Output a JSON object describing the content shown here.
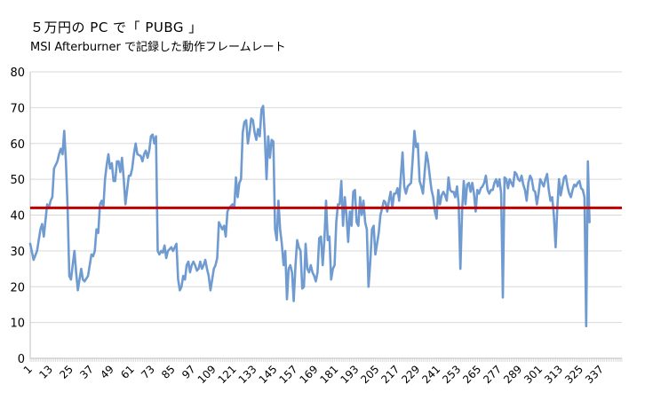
{
  "chart_data": {
    "type": "line",
    "title": "５万円の PC で「 PUBG 」",
    "subtitle": "MSI Afterburner で記録した動作フレームレート",
    "xlabel": "",
    "ylabel": "",
    "ylim": [
      0,
      80
    ],
    "yticks": [
      0,
      10,
      20,
      30,
      40,
      50,
      60,
      70,
      80
    ],
    "xticks": [
      1,
      13,
      25,
      37,
      49,
      61,
      73,
      85,
      97,
      109,
      121,
      133,
      145,
      157,
      169,
      181,
      193,
      205,
      217,
      229,
      241,
      253,
      265,
      277,
      289,
      301,
      313,
      325,
      337
    ],
    "x_range": [
      1,
      349
    ],
    "grid": "horizontal",
    "colors": {
      "series": "#6f9bd1",
      "reference": "#c00000"
    },
    "series": [
      {
        "points": [
          [
            1,
            32
          ],
          [
            3,
            27.5
          ],
          [
            5,
            30
          ],
          [
            7,
            36
          ],
          [
            8,
            37.5
          ],
          [
            9,
            34
          ],
          [
            11,
            43
          ],
          [
            12,
            42
          ],
          [
            13,
            44
          ],
          [
            14,
            45
          ],
          [
            15,
            53
          ],
          [
            17,
            55
          ],
          [
            18,
            57
          ],
          [
            19,
            58.5
          ],
          [
            20,
            57
          ],
          [
            21,
            63.5
          ],
          [
            22,
            55
          ],
          [
            23,
            42
          ],
          [
            24,
            23
          ],
          [
            25,
            22
          ],
          [
            26,
            26
          ],
          [
            27,
            30
          ],
          [
            28,
            24
          ],
          [
            29,
            19
          ],
          [
            30,
            22
          ],
          [
            31,
            25
          ],
          [
            32,
            22
          ],
          [
            33,
            21.5
          ],
          [
            35,
            23
          ],
          [
            37,
            29
          ],
          [
            38,
            28.5
          ],
          [
            39,
            30
          ],
          [
            40,
            36
          ],
          [
            41,
            35
          ],
          [
            42,
            43
          ],
          [
            43,
            44
          ],
          [
            44,
            42
          ],
          [
            45,
            50
          ],
          [
            46,
            54
          ],
          [
            47,
            57
          ],
          [
            48,
            53
          ],
          [
            49,
            54.5
          ],
          [
            50,
            49.5
          ],
          [
            51,
            49.5
          ],
          [
            52,
            55
          ],
          [
            53,
            55
          ],
          [
            54,
            52
          ],
          [
            55,
            56
          ],
          [
            56,
            50
          ],
          [
            57,
            43
          ],
          [
            58,
            47
          ],
          [
            59,
            51
          ],
          [
            60,
            51
          ],
          [
            61,
            53
          ],
          [
            62,
            57
          ],
          [
            63,
            60
          ],
          [
            64,
            57
          ],
          [
            66,
            56.5
          ],
          [
            67,
            55
          ],
          [
            68,
            57
          ],
          [
            69,
            58
          ],
          [
            70,
            56
          ],
          [
            71,
            58
          ],
          [
            72,
            62
          ],
          [
            73,
            62.5
          ],
          [
            74,
            60
          ],
          [
            75,
            62
          ],
          [
            76,
            30
          ],
          [
            77,
            29
          ],
          [
            78,
            30
          ],
          [
            79,
            29.5
          ],
          [
            80,
            31.5
          ],
          [
            81,
            28
          ],
          [
            82,
            30
          ],
          [
            83,
            30.5
          ],
          [
            84,
            31
          ],
          [
            85,
            30
          ],
          [
            86,
            31
          ],
          [
            87,
            32
          ],
          [
            88,
            22
          ],
          [
            89,
            19
          ],
          [
            90,
            20
          ],
          [
            91,
            23
          ],
          [
            92,
            22
          ],
          [
            93,
            26
          ],
          [
            94,
            27
          ],
          [
            95,
            24
          ],
          [
            96,
            26
          ],
          [
            97,
            27
          ],
          [
            98,
            26
          ],
          [
            99,
            24.5
          ],
          [
            100,
            25
          ],
          [
            101,
            27
          ],
          [
            102,
            25
          ],
          [
            103,
            26
          ],
          [
            104,
            27.5
          ],
          [
            105,
            25
          ],
          [
            106,
            23
          ],
          [
            107,
            19
          ],
          [
            108,
            22
          ],
          [
            109,
            25
          ],
          [
            110,
            26
          ],
          [
            111,
            28
          ],
          [
            112,
            38
          ],
          [
            113,
            37
          ],
          [
            114,
            36
          ],
          [
            115,
            37
          ],
          [
            116,
            34
          ],
          [
            117,
            41
          ],
          [
            118,
            42
          ],
          [
            119,
            42.5
          ],
          [
            120,
            43
          ],
          [
            121,
            42
          ],
          [
            122,
            50.5
          ],
          [
            123,
            45
          ],
          [
            124,
            49
          ],
          [
            125,
            50
          ],
          [
            126,
            63
          ],
          [
            127,
            66
          ],
          [
            128,
            66.5
          ],
          [
            129,
            60
          ],
          [
            130,
            63
          ],
          [
            131,
            67
          ],
          [
            132,
            66.5
          ],
          [
            133,
            63
          ],
          [
            134,
            61
          ],
          [
            135,
            64
          ],
          [
            136,
            62
          ],
          [
            137,
            69.5
          ],
          [
            138,
            70.5
          ],
          [
            139,
            62
          ],
          [
            140,
            50
          ],
          [
            141,
            62
          ],
          [
            142,
            56
          ],
          [
            143,
            61
          ],
          [
            144,
            60.5
          ],
          [
            145,
            36
          ],
          [
            146,
            33
          ],
          [
            147,
            44
          ],
          [
            148,
            36
          ],
          [
            149,
            32
          ],
          [
            150,
            26
          ],
          [
            151,
            30
          ],
          [
            152,
            16.5
          ],
          [
            153,
            25
          ],
          [
            154,
            26
          ],
          [
            155,
            24
          ],
          [
            156,
            16
          ],
          [
            157,
            26
          ],
          [
            158,
            33
          ],
          [
            159,
            31
          ],
          [
            160,
            30
          ],
          [
            161,
            19.5
          ],
          [
            162,
            20
          ],
          [
            163,
            32
          ],
          [
            164,
            25
          ],
          [
            165,
            24
          ],
          [
            166,
            26
          ],
          [
            167,
            24
          ],
          [
            168,
            23
          ],
          [
            169,
            21.5
          ],
          [
            170,
            24
          ],
          [
            171,
            33.5
          ],
          [
            172,
            34
          ],
          [
            173,
            26
          ],
          [
            174,
            33
          ],
          [
            175,
            44
          ],
          [
            176,
            33
          ],
          [
            177,
            34
          ],
          [
            178,
            22
          ],
          [
            179,
            25
          ],
          [
            180,
            26
          ],
          [
            181,
            38
          ],
          [
            182,
            43
          ],
          [
            183,
            43
          ],
          [
            184,
            49.5
          ],
          [
            185,
            37
          ],
          [
            186,
            45
          ],
          [
            187,
            40
          ],
          [
            188,
            32.5
          ],
          [
            189,
            41
          ],
          [
            190,
            37
          ],
          [
            191,
            46.5
          ],
          [
            192,
            47
          ],
          [
            193,
            38
          ],
          [
            194,
            37
          ],
          [
            195,
            45
          ],
          [
            196,
            40
          ],
          [
            197,
            44
          ],
          [
            198,
            38
          ],
          [
            199,
            36
          ],
          [
            200,
            20
          ],
          [
            201,
            27
          ],
          [
            202,
            36
          ],
          [
            203,
            37
          ],
          [
            204,
            29
          ],
          [
            205,
            32
          ],
          [
            206,
            35
          ],
          [
            207,
            40
          ],
          [
            208,
            42
          ],
          [
            209,
            44
          ],
          [
            210,
            43.5
          ],
          [
            211,
            41
          ],
          [
            212,
            44
          ],
          [
            213,
            46.5
          ],
          [
            214,
            42
          ],
          [
            215,
            46
          ],
          [
            216,
            46
          ],
          [
            217,
            47.5
          ],
          [
            218,
            44
          ],
          [
            219,
            51
          ],
          [
            220,
            57.5
          ],
          [
            221,
            48
          ],
          [
            222,
            46
          ],
          [
            223,
            48
          ],
          [
            224,
            48.5
          ],
          [
            225,
            49
          ],
          [
            226,
            56
          ],
          [
            227,
            63.5
          ],
          [
            228,
            59
          ],
          [
            229,
            60
          ],
          [
            230,
            49.5
          ],
          [
            231,
            48
          ],
          [
            232,
            46
          ],
          [
            233,
            52
          ],
          [
            234,
            57.5
          ],
          [
            235,
            55
          ],
          [
            236,
            51
          ],
          [
            237,
            47
          ],
          [
            238,
            45
          ],
          [
            239,
            41
          ],
          [
            240,
            39
          ],
          [
            241,
            47
          ],
          [
            242,
            43
          ],
          [
            243,
            45.5
          ],
          [
            244,
            46.5
          ],
          [
            245,
            45.5
          ],
          [
            246,
            44
          ],
          [
            247,
            50.5
          ],
          [
            248,
            47
          ],
          [
            249,
            46.5
          ],
          [
            250,
            46.5
          ],
          [
            251,
            45
          ],
          [
            252,
            48
          ],
          [
            253,
            43
          ],
          [
            254,
            25
          ],
          [
            255,
            41
          ],
          [
            256,
            49.5
          ],
          [
            257,
            43
          ],
          [
            258,
            48.5
          ],
          [
            259,
            49
          ],
          [
            260,
            46.5
          ],
          [
            261,
            49
          ],
          [
            262,
            46
          ],
          [
            263,
            41
          ],
          [
            264,
            47
          ],
          [
            265,
            46
          ],
          [
            266,
            47.5
          ],
          [
            267,
            48
          ],
          [
            268,
            49
          ],
          [
            269,
            51
          ],
          [
            270,
            47
          ],
          [
            271,
            46
          ],
          [
            272,
            47
          ],
          [
            273,
            47
          ],
          [
            274,
            49
          ],
          [
            275,
            50
          ],
          [
            276,
            48
          ],
          [
            277,
            50
          ],
          [
            278,
            46
          ],
          [
            279,
            17
          ],
          [
            280,
            50.5
          ],
          [
            281,
            50
          ],
          [
            282,
            47.5
          ],
          [
            283,
            50
          ],
          [
            284,
            49
          ],
          [
            285,
            48
          ],
          [
            286,
            52
          ],
          [
            287,
            51.5
          ],
          [
            288,
            50
          ],
          [
            289,
            49.5
          ],
          [
            290,
            51
          ],
          [
            291,
            48.5
          ],
          [
            292,
            47
          ],
          [
            293,
            44
          ],
          [
            294,
            49
          ],
          [
            295,
            51
          ],
          [
            296,
            50
          ],
          [
            297,
            47
          ],
          [
            298,
            46.5
          ],
          [
            299,
            43
          ],
          [
            300,
            46
          ],
          [
            301,
            50
          ],
          [
            302,
            49
          ],
          [
            303,
            48
          ],
          [
            304,
            50
          ],
          [
            305,
            51.5
          ],
          [
            306,
            47
          ],
          [
            307,
            44
          ],
          [
            308,
            45
          ],
          [
            309,
            40
          ],
          [
            310,
            31
          ],
          [
            311,
            42
          ],
          [
            312,
            50
          ],
          [
            313,
            45.5
          ],
          [
            314,
            48
          ],
          [
            315,
            50.5
          ],
          [
            316,
            51
          ],
          [
            317,
            48
          ],
          [
            318,
            46
          ],
          [
            319,
            45
          ],
          [
            320,
            47
          ],
          [
            321,
            48.5
          ],
          [
            322,
            48
          ],
          [
            323,
            49
          ],
          [
            324,
            49.5
          ],
          [
            325,
            47.5
          ],
          [
            326,
            47
          ],
          [
            327,
            45
          ],
          [
            328,
            9
          ],
          [
            329,
            55
          ],
          [
            330,
            38
          ]
        ]
      }
    ],
    "reference_line": {
      "value": 42
    }
  }
}
